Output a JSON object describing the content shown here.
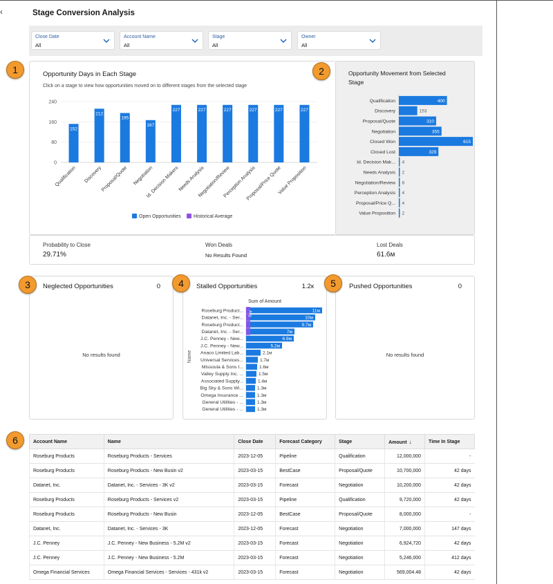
{
  "page_title": "Stage Conversion Analysis",
  "filters": [
    {
      "label": "Close Date",
      "value": "All"
    },
    {
      "label": "Account Name",
      "value": "All"
    },
    {
      "label": "Stage",
      "value": "All"
    },
    {
      "label": "Owner",
      "value": "All"
    }
  ],
  "callouts": [
    "1",
    "2",
    "3",
    "4",
    "5",
    "6"
  ],
  "days_chart": {
    "title": "Opportunity Days in Each Stage",
    "subtitle": "Click on a stage to view how opportunities moved on to different stages from the selected stage",
    "legend": [
      "Open Opportunities",
      "Historical Average"
    ]
  },
  "movement_chart": {
    "title_line1": "Opportunity Movement from Selected",
    "title_line2": "Stage"
  },
  "metrics": {
    "probability_label": "Probability to Close",
    "probability_value": "29.71%",
    "won_label": "Won Deals",
    "won_value": "No Results Found",
    "lost_label": "Lost Deals",
    "lost_value": "61.6м"
  },
  "neglected": {
    "title": "Neglected Opportunities",
    "count": "0",
    "empty": "No results found"
  },
  "stalled": {
    "title": "Stalled Opportunities",
    "count": "1.2к",
    "x_title": "Sum of Amount",
    "y_title": "Name",
    "avg_tag": "Avg"
  },
  "pushed": {
    "title": "Pushed Opportunities",
    "count": "0",
    "empty": "No results found"
  },
  "table": {
    "headers": [
      "Account Name",
      "Name",
      "Close Date",
      "Forecast Category",
      "Stage",
      "Amount",
      "Time In Stage"
    ],
    "sort_icon": "arrow-down-icon",
    "rows": [
      [
        "Roseburg Products",
        "Roseburg Products - Services",
        "2023-12-05",
        "Pipeline",
        "Qualification",
        "12,000,000",
        "-"
      ],
      [
        "Roseburg Products",
        "Roseburg Products - New Busin v2",
        "2023-03-15",
        "BestCase",
        "Proposal/Quote",
        "10,700,000",
        "42 days"
      ],
      [
        "Datanet, Inc.",
        "Datanet, Inc. - Services - 3K v2",
        "2023-03-15",
        "Forecast",
        "Negotiation",
        "10,200,000",
        "42 days"
      ],
      [
        "Roseburg Products",
        "Roseburg Products - Services v2",
        "2023-03-15",
        "Pipeline",
        "Qualification",
        "9,720,000",
        "42 days"
      ],
      [
        "Roseburg Products",
        "Roseburg Products - New Busin",
        "2023-12-05",
        "BestCase",
        "Proposal/Quote",
        "8,000,000",
        "-"
      ],
      [
        "Datanet, Inc.",
        "Datanet, Inc. - Services - 3K",
        "2023-12-05",
        "Forecast",
        "Negotiation",
        "7,000,000",
        "147 days"
      ],
      [
        "J.C. Penney",
        "J.C. Penney - New Business - 5.2M v2",
        "2023-03-15",
        "Forecast",
        "Negotiation",
        "6,924,720",
        "42 days"
      ],
      [
        "J.C. Penney",
        "J.C. Penney - New Business - 5.2M",
        "2023-03-15",
        "Forecast",
        "Negotiation",
        "5,246,000",
        "412 days"
      ],
      [
        "Omega Financial Services",
        "Omega Financial Services - Services - 431k v2",
        "2023-03-15",
        "Forecast",
        "Negotiation",
        "569,004.48",
        "42 days"
      ]
    ]
  },
  "colors": {
    "accent": "#1b7ae0",
    "average": "#9050e9",
    "callout": "#f29a2e"
  },
  "chart_data": [
    {
      "type": "bar",
      "title": "Opportunity Days in Each Stage",
      "categories": [
        "Qualification",
        "Discovery",
        "Proposal/Quote",
        "Negotiation",
        "Id. Decision Makers",
        "Needs Analysis",
        "Negotiation/Review",
        "Perception Analysis",
        "Proposal/Price Quote",
        "Value Proposition"
      ],
      "series": [
        {
          "name": "Open Opportunities",
          "values": [
            152,
            212,
            195,
            167,
            227,
            227,
            227,
            227,
            227,
            227
          ]
        }
      ],
      "ylim": [
        0,
        240
      ],
      "yticks": [
        "0",
        "80",
        "160",
        "240"
      ],
      "legend": "bottom"
    },
    {
      "type": "bar",
      "orientation": "horizontal",
      "title": "Opportunity Movement from Selected Stage",
      "categories": [
        "Qualification",
        "Discovery",
        "Proposal/Quote",
        "Negotiation",
        "Closed Won",
        "Closed Lost",
        "Id. Decision Mak...",
        "Needs Analysis",
        "Negotiation/Review",
        "Perception Analysis",
        "Proposal/Price Q...",
        "Value Proposition"
      ],
      "values": [
        400,
        153,
        310,
        355,
        615,
        329,
        4,
        2,
        8,
        4,
        4,
        2
      ],
      "labels": [
        "400",
        "153",
        "310",
        "355",
        "615",
        "329",
        "4",
        "2",
        "8",
        "4",
        "4",
        "2"
      ]
    },
    {
      "type": "bar",
      "orientation": "horizontal",
      "title": "Stalled Opportunities",
      "xlabel": "Sum of Amount",
      "ylabel": "Name",
      "categories": [
        "Roseburg Product...",
        "Datanet, Inc. - Ser...",
        "Roseburg Product...",
        "Datanet, Inc. - Ser...",
        "J.C. Penney - New...",
        "J.C. Penney - New...",
        "Anaco Limited Lab...",
        "Universal Services...",
        "Missoula & Sons I...",
        "Valley Supply Inc. ...",
        "Associated Supply...",
        "Big Sky & Sons Wi...",
        "Omega Insurance ...",
        "General Utilities - ...",
        "General Utilities - ..."
      ],
      "values": [
        11,
        10,
        9.7,
        7,
        6.9,
        5.2,
        2.1,
        1.7,
        1.6,
        1.5,
        1.4,
        1.3,
        1.3,
        1.3,
        1.3
      ],
      "labels": [
        "11м",
        "10м",
        "9.7м",
        "7м",
        "6.9м",
        "5.2м",
        "2.1м",
        "1.7м",
        "1.6м",
        "1.5м",
        "1.4м",
        "1.3м",
        "1.3м",
        "1.3м",
        "1.3м"
      ],
      "unit": "м"
    }
  ]
}
